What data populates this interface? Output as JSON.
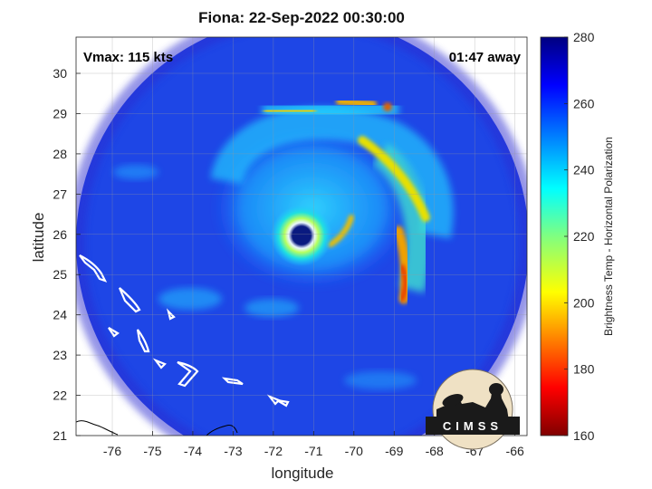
{
  "title": "Fiona: 22-Sep-2022 00:30:00",
  "annotations": {
    "vmax": "Vmax: 115 kts",
    "time_away": "01:47 away"
  },
  "axes": {
    "xlabel": "longitude",
    "ylabel": "latitude",
    "xlim": [
      -76.9,
      -65.7
    ],
    "ylim": [
      21,
      30.9
    ],
    "xticks": [
      "-76",
      "-75",
      "-74",
      "-73",
      "-72",
      "-71",
      "-70",
      "-69",
      "-68",
      "-67",
      "-66"
    ],
    "yticks": [
      "30",
      "29",
      "28",
      "27",
      "26",
      "25",
      "24",
      "23",
      "22",
      "21"
    ],
    "grid": true
  },
  "colorbar": {
    "label": "Brightness Temp - Horizontal Polarization",
    "range": [
      160,
      280
    ],
    "ticks": [
      "280",
      "260",
      "240",
      "220",
      "200",
      "180",
      "160"
    ],
    "colormap": "jet"
  },
  "storm": {
    "name": "Fiona",
    "eye_center": {
      "lon": -71.2,
      "lat": 25.9
    },
    "swath_edge_brightness_k": 262
  },
  "logo": {
    "text": "CIMSS"
  },
  "colors": {
    "background": "#1a3fe0",
    "warm_band": "#f5d100",
    "eye": "#0a1a80",
    "land_outline": "#ffffff"
  }
}
